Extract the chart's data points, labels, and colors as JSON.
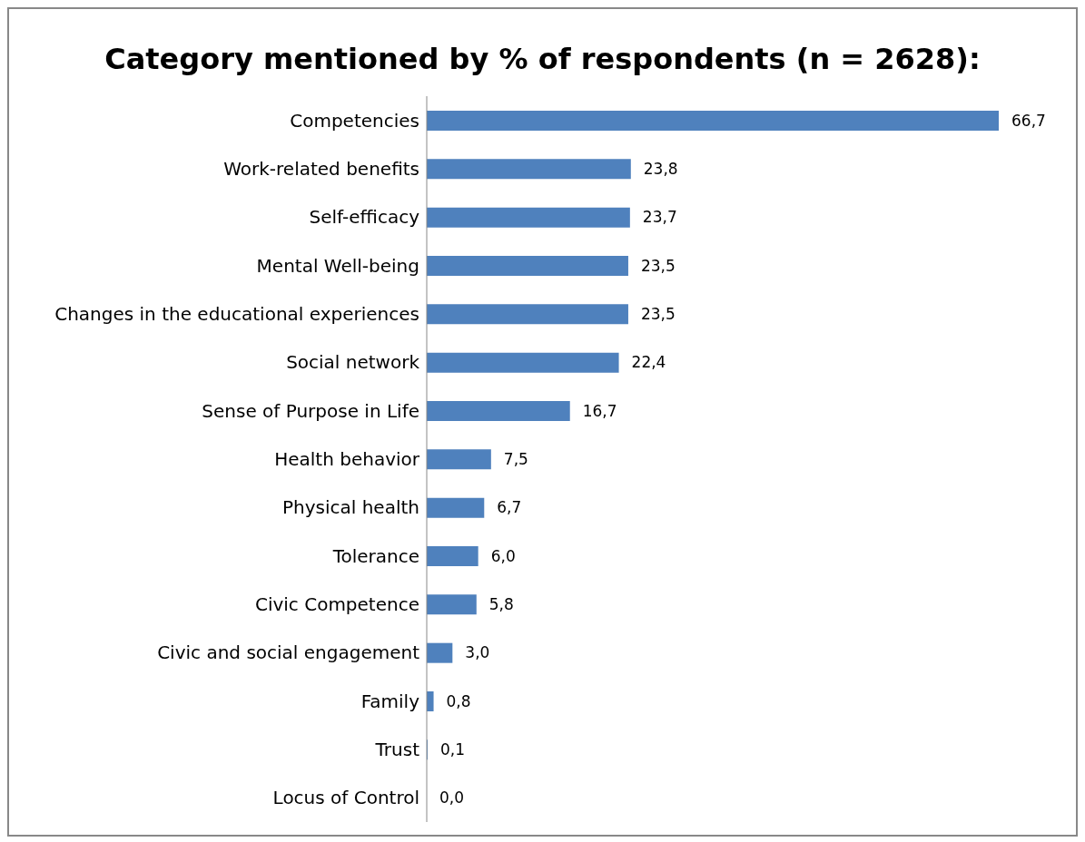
{
  "chart_data": {
    "type": "bar",
    "orientation": "horizontal",
    "title": "Category mentioned by % of respondents (n = 2628):",
    "categories": [
      "Competencies",
      "Work-related benefits",
      "Self-efficacy",
      "Mental Well-being",
      "Changes in the educational experiences",
      "Social network",
      "Sense of Purpose in Life",
      "Health behavior",
      "Physical health",
      "Tolerance",
      "Civic Competence",
      "Civic and social engagement",
      "Family",
      "Trust",
      "Locus of Control"
    ],
    "values": [
      66.7,
      23.8,
      23.7,
      23.5,
      23.5,
      22.4,
      16.7,
      7.5,
      6.7,
      6.0,
      5.8,
      3.0,
      0.8,
      0.1,
      0.0
    ],
    "value_labels": [
      "66,7",
      "23,8",
      "23,7",
      "23,5",
      "23,5",
      "22,4",
      "16,7",
      "7,5",
      "6,7",
      "6,0",
      "5,8",
      "3,0",
      "0,8",
      "0,1",
      "0,0"
    ],
    "color": "#4f81bd"
  }
}
